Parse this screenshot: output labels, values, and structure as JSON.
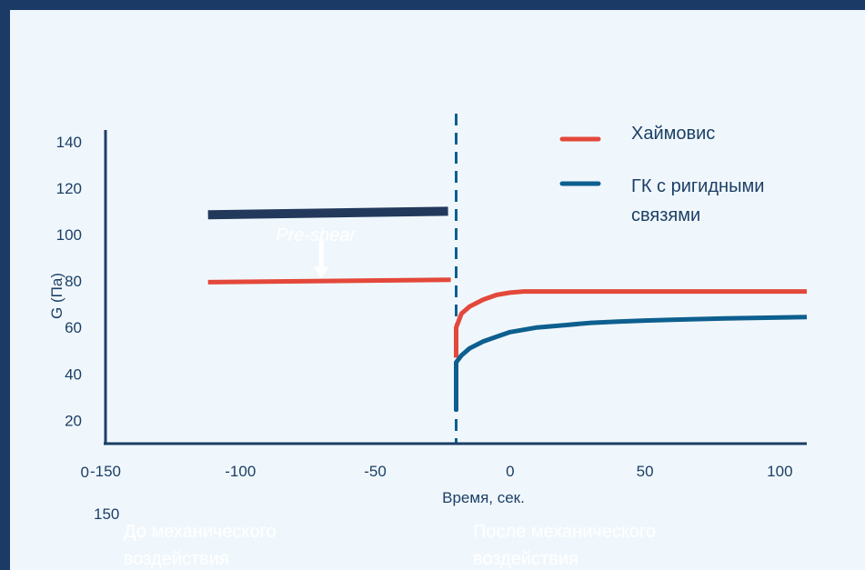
{
  "chart_data": {
    "type": "line",
    "title": "",
    "xlabel": "Время, сек.",
    "ylabel": "G (Па)",
    "xlim": [
      -150,
      110
    ],
    "ylim": [
      10,
      145
    ],
    "x_ticks": [
      {
        "value": -150,
        "label": "-150"
      },
      {
        "value": -100,
        "label": "-100"
      },
      {
        "value": -50,
        "label": "-50"
      },
      {
        "value": 0,
        "label": "0"
      },
      {
        "value": 50,
        "label": "50"
      },
      {
        "value": 100,
        "label": "100"
      }
    ],
    "y_ticks": [
      {
        "value": 20,
        "label": "20"
      },
      {
        "value": 40,
        "label": "40"
      },
      {
        "value": 60,
        "label": "60"
      },
      {
        "value": 80,
        "label": "80"
      },
      {
        "value": 100,
        "label": "100"
      },
      {
        "value": 120,
        "label": "120"
      },
      {
        "value": 140,
        "label": "140"
      }
    ],
    "origin_labels": {
      "x_origin": "0",
      "y_origin": "150"
    },
    "series": [
      {
        "name": "Хаймовис",
        "color": "#e3483a",
        "segments": [
          [
            [
              -112,
              79.5
            ],
            [
              -22,
              80.5
            ]
          ],
          [
            [
              -20,
              47
            ],
            [
              -20,
              60
            ],
            [
              -18,
              66
            ],
            [
              -15,
              69
            ],
            [
              -10,
              72
            ],
            [
              -5,
              74
            ],
            [
              0,
              75
            ],
            [
              5,
              75.5
            ],
            [
              10,
              75.5
            ],
            [
              50,
              75.5
            ],
            [
              110,
              75.5
            ]
          ]
        ]
      },
      {
        "name": "ГК с ригидными связями",
        "color": "#0d5f8f",
        "segments": [
          [
            [
              -20,
              24
            ],
            [
              -20,
              45
            ],
            [
              -18,
              48
            ],
            [
              -15,
              51
            ],
            [
              -10,
              54
            ],
            [
              -5,
              56
            ],
            [
              0,
              58
            ],
            [
              10,
              60
            ],
            [
              20,
              61
            ],
            [
              30,
              62
            ],
            [
              40,
              62.5
            ],
            [
              50,
              63
            ],
            [
              60,
              63.3
            ],
            [
              70,
              63.6
            ],
            [
              80,
              63.9
            ],
            [
              90,
              64.1
            ],
            [
              100,
              64.3
            ],
            [
              110,
              64.5
            ]
          ]
        ]
      },
      {
        "name": "",
        "color": "#23395c",
        "segments": [
          [
            [
              -112,
              108.5
            ],
            [
              -23,
              110
            ]
          ]
        ]
      }
    ],
    "divider_x": -20,
    "legend": {
      "placement": "top-right",
      "entries": [
        {
          "lines": [
            "Хаймовис"
          ],
          "color": "#e3483a"
        },
        {
          "lines": [
            "ГК с ригидными",
            "связями"
          ],
          "color": "#0d5f8f"
        }
      ]
    },
    "annotations": {
      "pre_shear": "Pre-shear",
      "before": [
        "До механического",
        "воздействия"
      ],
      "after": [
        "После механического",
        "воздействия"
      ]
    },
    "grid": false
  }
}
